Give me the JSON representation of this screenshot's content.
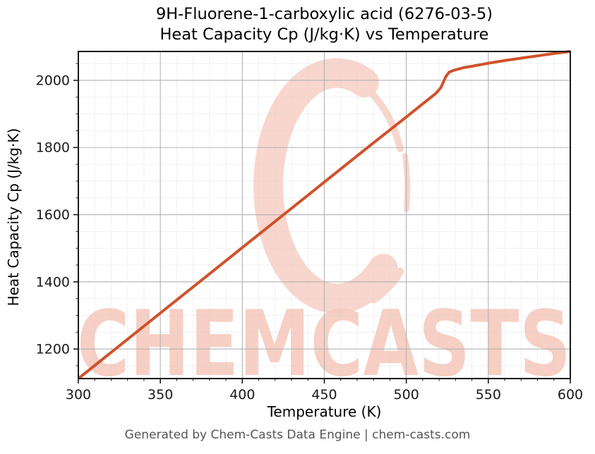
{
  "title": {
    "line1": "9H-Fluorene-1-carboxylic acid (6276-03-5)",
    "line2": "Heat Capacity Cp (J/kg·K) vs Temperature"
  },
  "watermark": {
    "logo_name": "chemcasts-c-logo",
    "text": "CHEMCASTS",
    "color": "#f8d3c9",
    "text_color": "#f7cbbf"
  },
  "footer": {
    "text": "Generated by Chem-Casts Data Engine | chem-casts.com"
  },
  "colors": {
    "line": "#d0512b",
    "grid_major": "#b2b2b2",
    "grid_minor": "#cfcfcf",
    "axis": "#1a1a1a",
    "tick_label": "#1a1a1a",
    "footer_text": "#555555"
  },
  "chart_data": {
    "type": "line",
    "title": "9H-Fluorene-1-carboxylic acid (6276-03-5) — Heat Capacity Cp (J/kg·K) vs Temperature",
    "xlabel": "Temperature (K)",
    "ylabel": "Heat Capacity Cp (J/kg·K)",
    "xlim": [
      300,
      600
    ],
    "ylim": [
      1112,
      2086
    ],
    "x_ticks": [
      300,
      350,
      400,
      450,
      500,
      550,
      600
    ],
    "y_ticks": [
      1200,
      1400,
      1600,
      1800,
      2000
    ],
    "x_minor_step": 10,
    "y_minor_step": 50,
    "grid": true,
    "legend_position": "none",
    "series": [
      {
        "name": "Heat Capacity Cp",
        "color": "#d0512b",
        "x": [
          300,
          320,
          340,
          360,
          380,
          400,
          420,
          440,
          460,
          480,
          500,
          510,
          518,
          521,
          524,
          526,
          529,
          535,
          540,
          550,
          560,
          570,
          580,
          590,
          600
        ],
        "y": [
          1112,
          1190,
          1268,
          1346,
          1424,
          1502,
          1580,
          1658,
          1736,
          1814,
          1891,
          1930,
          1961,
          1978,
          2010,
          2024,
          2030,
          2038,
          2042,
          2051,
          2059,
          2066,
          2073,
          2080,
          2086
        ]
      }
    ],
    "annotations": {
      "phase_transition_step_near_K": 525
    }
  }
}
